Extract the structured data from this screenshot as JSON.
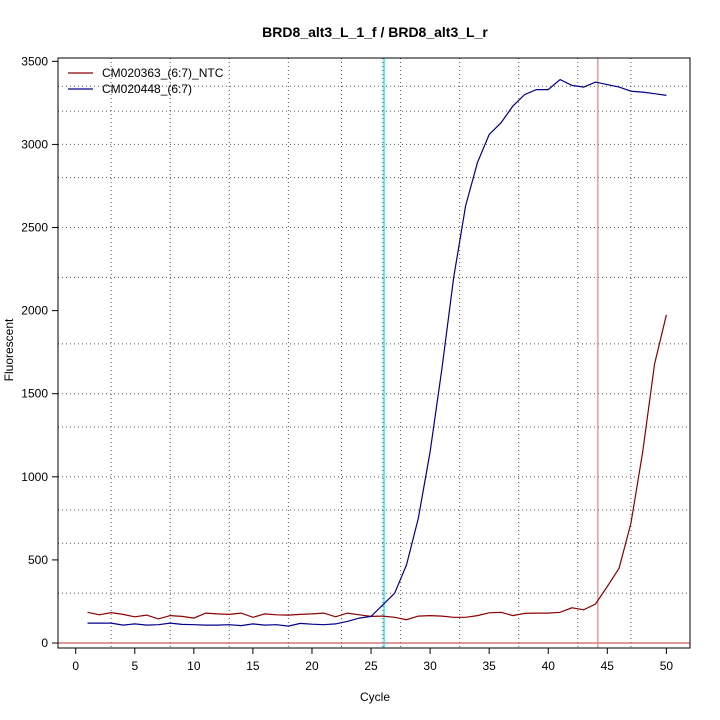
{
  "chart_data": {
    "type": "line",
    "title": "BRD8_alt3_L_1_f / BRD8_alt3_L_r",
    "xlabel": "Cycle",
    "ylabel": "Fluorescent",
    "xlim": [
      -1.5,
      52
    ],
    "ylim": [
      -30,
      3520
    ],
    "x_ticks": [
      0,
      5,
      10,
      15,
      20,
      25,
      30,
      35,
      40,
      45,
      50
    ],
    "y_ticks": [
      0,
      500,
      1000,
      1500,
      2000,
      2500,
      3000,
      3500
    ],
    "x_grid_dotted": [
      3,
      8,
      13,
      18,
      22.5,
      26,
      27.5,
      32.5,
      37.5,
      42.5,
      47
    ],
    "y_grid_dotted": [
      300,
      600,
      800,
      1000,
      1300,
      1500,
      1800,
      2200,
      2500,
      2800,
      3000,
      3200,
      3350
    ],
    "legend_position": "top-left",
    "grid": true,
    "vlines": [
      {
        "x": 26.1,
        "color": "#00e5ee"
      },
      {
        "x": 44.2,
        "color": "#f08080"
      }
    ],
    "hline": {
      "y": 0,
      "color": "#cd5c5c"
    },
    "x": [
      1,
      2,
      3,
      4,
      5,
      6,
      7,
      8,
      9,
      10,
      11,
      12,
      13,
      14,
      15,
      16,
      17,
      18,
      19,
      20,
      21,
      22,
      23,
      24,
      25,
      26,
      27,
      28,
      29,
      30,
      31,
      32,
      33,
      34,
      35,
      36,
      37,
      38,
      39,
      40,
      41,
      42,
      43,
      44,
      45,
      46,
      47,
      48,
      49,
      50
    ],
    "series": [
      {
        "name": "CM020363_(6:7)_NTC",
        "color": "#8b0000",
        "values": [
          185,
          170,
          183,
          172,
          158,
          168,
          145,
          165,
          160,
          150,
          180,
          175,
          172,
          180,
          155,
          175,
          170,
          168,
          172,
          175,
          180,
          158,
          180,
          170,
          160,
          162,
          155,
          140,
          162,
          165,
          162,
          155,
          155,
          165,
          182,
          185,
          165,
          178,
          180,
          180,
          185,
          212,
          200,
          235,
          340,
          450,
          720,
          1150,
          1680,
          1975
        ]
      },
      {
        "name": "CM020448_(6:7)",
        "color": "#00008b",
        "values": [
          120,
          120,
          120,
          108,
          115,
          108,
          110,
          120,
          112,
          110,
          108,
          108,
          110,
          105,
          115,
          108,
          110,
          102,
          118,
          113,
          110,
          115,
          130,
          150,
          160,
          230,
          300,
          470,
          750,
          1150,
          1650,
          2200,
          2630,
          2890,
          3060,
          3130,
          3230,
          3300,
          3330,
          3330,
          3390,
          3355,
          3345,
          3375,
          3360,
          3345,
          3320,
          3315,
          3305,
          3295
        ]
      }
    ]
  }
}
